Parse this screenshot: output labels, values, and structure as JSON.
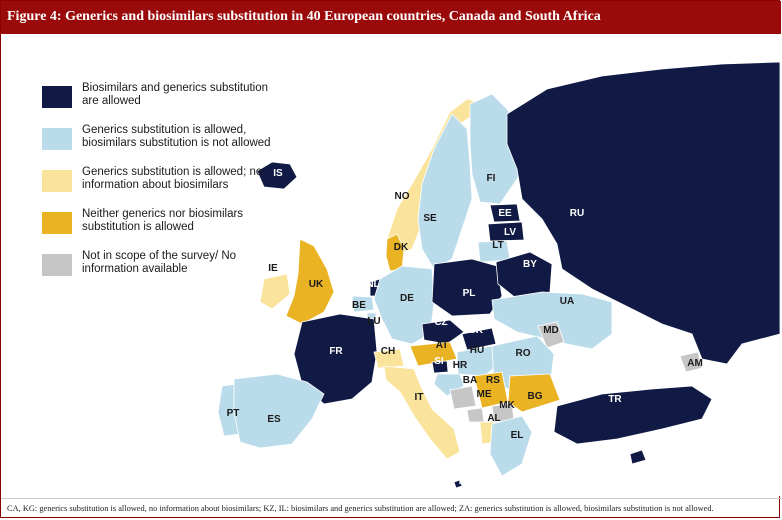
{
  "figure": {
    "title": "Figure 4: Generics and biosimilars substitution in 40 European countries, Canada and South Africa",
    "footnote": "CA, KG: generics substitution is allowed, no information about biosimilars; KZ, IL: biosimilars and generics substitution are allowed; ZA: generics substitution is allowed, biosimilars substitution is not allowed."
  },
  "colors": {
    "both_allowed": "#111a44",
    "generics_only": "#b9dbea",
    "generics_no_info": "#fae39a",
    "neither": "#e9b323",
    "out_of_scope": "#c6c6c6",
    "title_bar": "#9b0a0a"
  },
  "legend": [
    {
      "key": "both_allowed",
      "label": "Biosimilars and generics substitution are allowed"
    },
    {
      "key": "generics_only",
      "label": "Generics substitution is allowed, biosimilars substitution is not allowed"
    },
    {
      "key": "generics_no_info",
      "label": "Generics substitution is allowed; no information about biosimilars"
    },
    {
      "key": "neither",
      "label": "Neither generics nor biosimilars substitution is allowed"
    },
    {
      "key": "out_of_scope",
      "label": "Not in scope of the survey/ No information available"
    }
  ],
  "countries": [
    {
      "code": "IS",
      "category": "both_allowed"
    },
    {
      "code": "NO",
      "category": "generics_no_info"
    },
    {
      "code": "SE",
      "category": "generics_only"
    },
    {
      "code": "FI",
      "category": "generics_only"
    },
    {
      "code": "RU",
      "category": "both_allowed"
    },
    {
      "code": "EE",
      "category": "both_allowed"
    },
    {
      "code": "LV",
      "category": "both_allowed"
    },
    {
      "code": "LT",
      "category": "generics_only"
    },
    {
      "code": "DK",
      "category": "neither"
    },
    {
      "code": "IE",
      "category": "generics_no_info"
    },
    {
      "code": "UK",
      "category": "neither"
    },
    {
      "code": "NL",
      "category": "both_allowed"
    },
    {
      "code": "BE",
      "category": "generics_only"
    },
    {
      "code": "LU",
      "category": "generics_only"
    },
    {
      "code": "DE",
      "category": "generics_only"
    },
    {
      "code": "PL",
      "category": "both_allowed"
    },
    {
      "code": "BY",
      "category": "both_allowed"
    },
    {
      "code": "UA",
      "category": "generics_only"
    },
    {
      "code": "FR",
      "category": "both_allowed"
    },
    {
      "code": "CZ",
      "category": "both_allowed"
    },
    {
      "code": "SK",
      "category": "both_allowed"
    },
    {
      "code": "AT",
      "category": "neither"
    },
    {
      "code": "CH",
      "category": "generics_no_info"
    },
    {
      "code": "SI",
      "category": "both_allowed"
    },
    {
      "code": "HU",
      "category": "generics_only"
    },
    {
      "code": "MD",
      "category": "out_of_scope"
    },
    {
      "code": "RO",
      "category": "generics_only"
    },
    {
      "code": "HR",
      "category": "generics_only"
    },
    {
      "code": "BA",
      "category": "out_of_scope"
    },
    {
      "code": "RS",
      "category": "neither"
    },
    {
      "code": "ME",
      "category": "out_of_scope"
    },
    {
      "code": "BG",
      "category": "neither"
    },
    {
      "code": "MK",
      "category": "out_of_scope"
    },
    {
      "code": "AL",
      "category": "generics_no_info"
    },
    {
      "code": "EL",
      "category": "generics_only"
    },
    {
      "code": "IT",
      "category": "generics_no_info"
    },
    {
      "code": "PT",
      "category": "generics_only"
    },
    {
      "code": "ES",
      "category": "generics_only"
    },
    {
      "code": "TR",
      "category": "both_allowed"
    },
    {
      "code": "AM",
      "category": "out_of_scope"
    },
    {
      "code": "CY",
      "category": "both_allowed"
    },
    {
      "code": "MT",
      "category": "both_allowed"
    }
  ]
}
